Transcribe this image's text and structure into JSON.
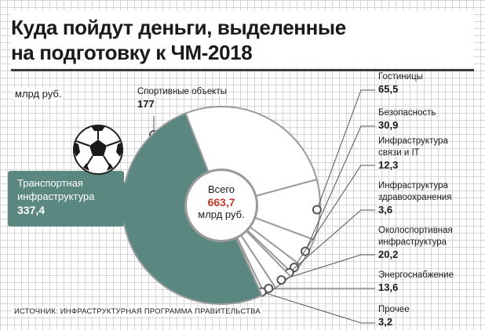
{
  "title": {
    "line1": "Куда пойдут деньги, выделенные",
    "line2": "на подготовку к ЧМ-2018"
  },
  "unit": "млрд руб.",
  "center": {
    "label": "Всего",
    "value": "663,7",
    "unit": "млрд руб."
  },
  "source": "ИСТОЧНИК: ИНФРАСТРУКТУРНАЯ ПРОГРАММА ПРАВИТЕЛЬСТВА",
  "colors": {
    "highlight": "#5b8781",
    "ring": "#ffffff",
    "outline": "#9a9a9a",
    "total_text": "#c0392b"
  },
  "decoration": "soccer-ball-icon",
  "chart_data": {
    "type": "pie",
    "total": 663.7,
    "slices": [
      {
        "label": "Спортивные объекты",
        "value": 177,
        "value_text": "177"
      },
      {
        "label": "Гостиницы",
        "value": 65.5,
        "value_text": "65,5"
      },
      {
        "label": "Безопасность",
        "value": 30.9,
        "value_text": "30,9"
      },
      {
        "label": "Инфраструктура связи и IT",
        "value": 12.3,
        "value_text": "12,3",
        "lines": [
          "Инфраструктура",
          "связи и IT"
        ]
      },
      {
        "label": "Инфраструктура здравоохранения",
        "value": 3.6,
        "value_text": "3,6",
        "lines": [
          "Инфраструктура",
          "здравоохранения"
        ]
      },
      {
        "label": "Околоспортивная инфраструктура",
        "value": 20.2,
        "value_text": "20,2",
        "lines": [
          "Околоспортивная",
          "инфраструктура"
        ]
      },
      {
        "label": "Энергоснабжение",
        "value": 13.6,
        "value_text": "13,6"
      },
      {
        "label": "Прочее",
        "value": 3.2,
        "value_text": "3,2"
      },
      {
        "label": "Транспортная инфраструктура",
        "value": 337.4,
        "value_text": "337,4",
        "lines": [
          "Транспортная",
          "инфраструктура"
        ],
        "highlight": true
      }
    ]
  }
}
